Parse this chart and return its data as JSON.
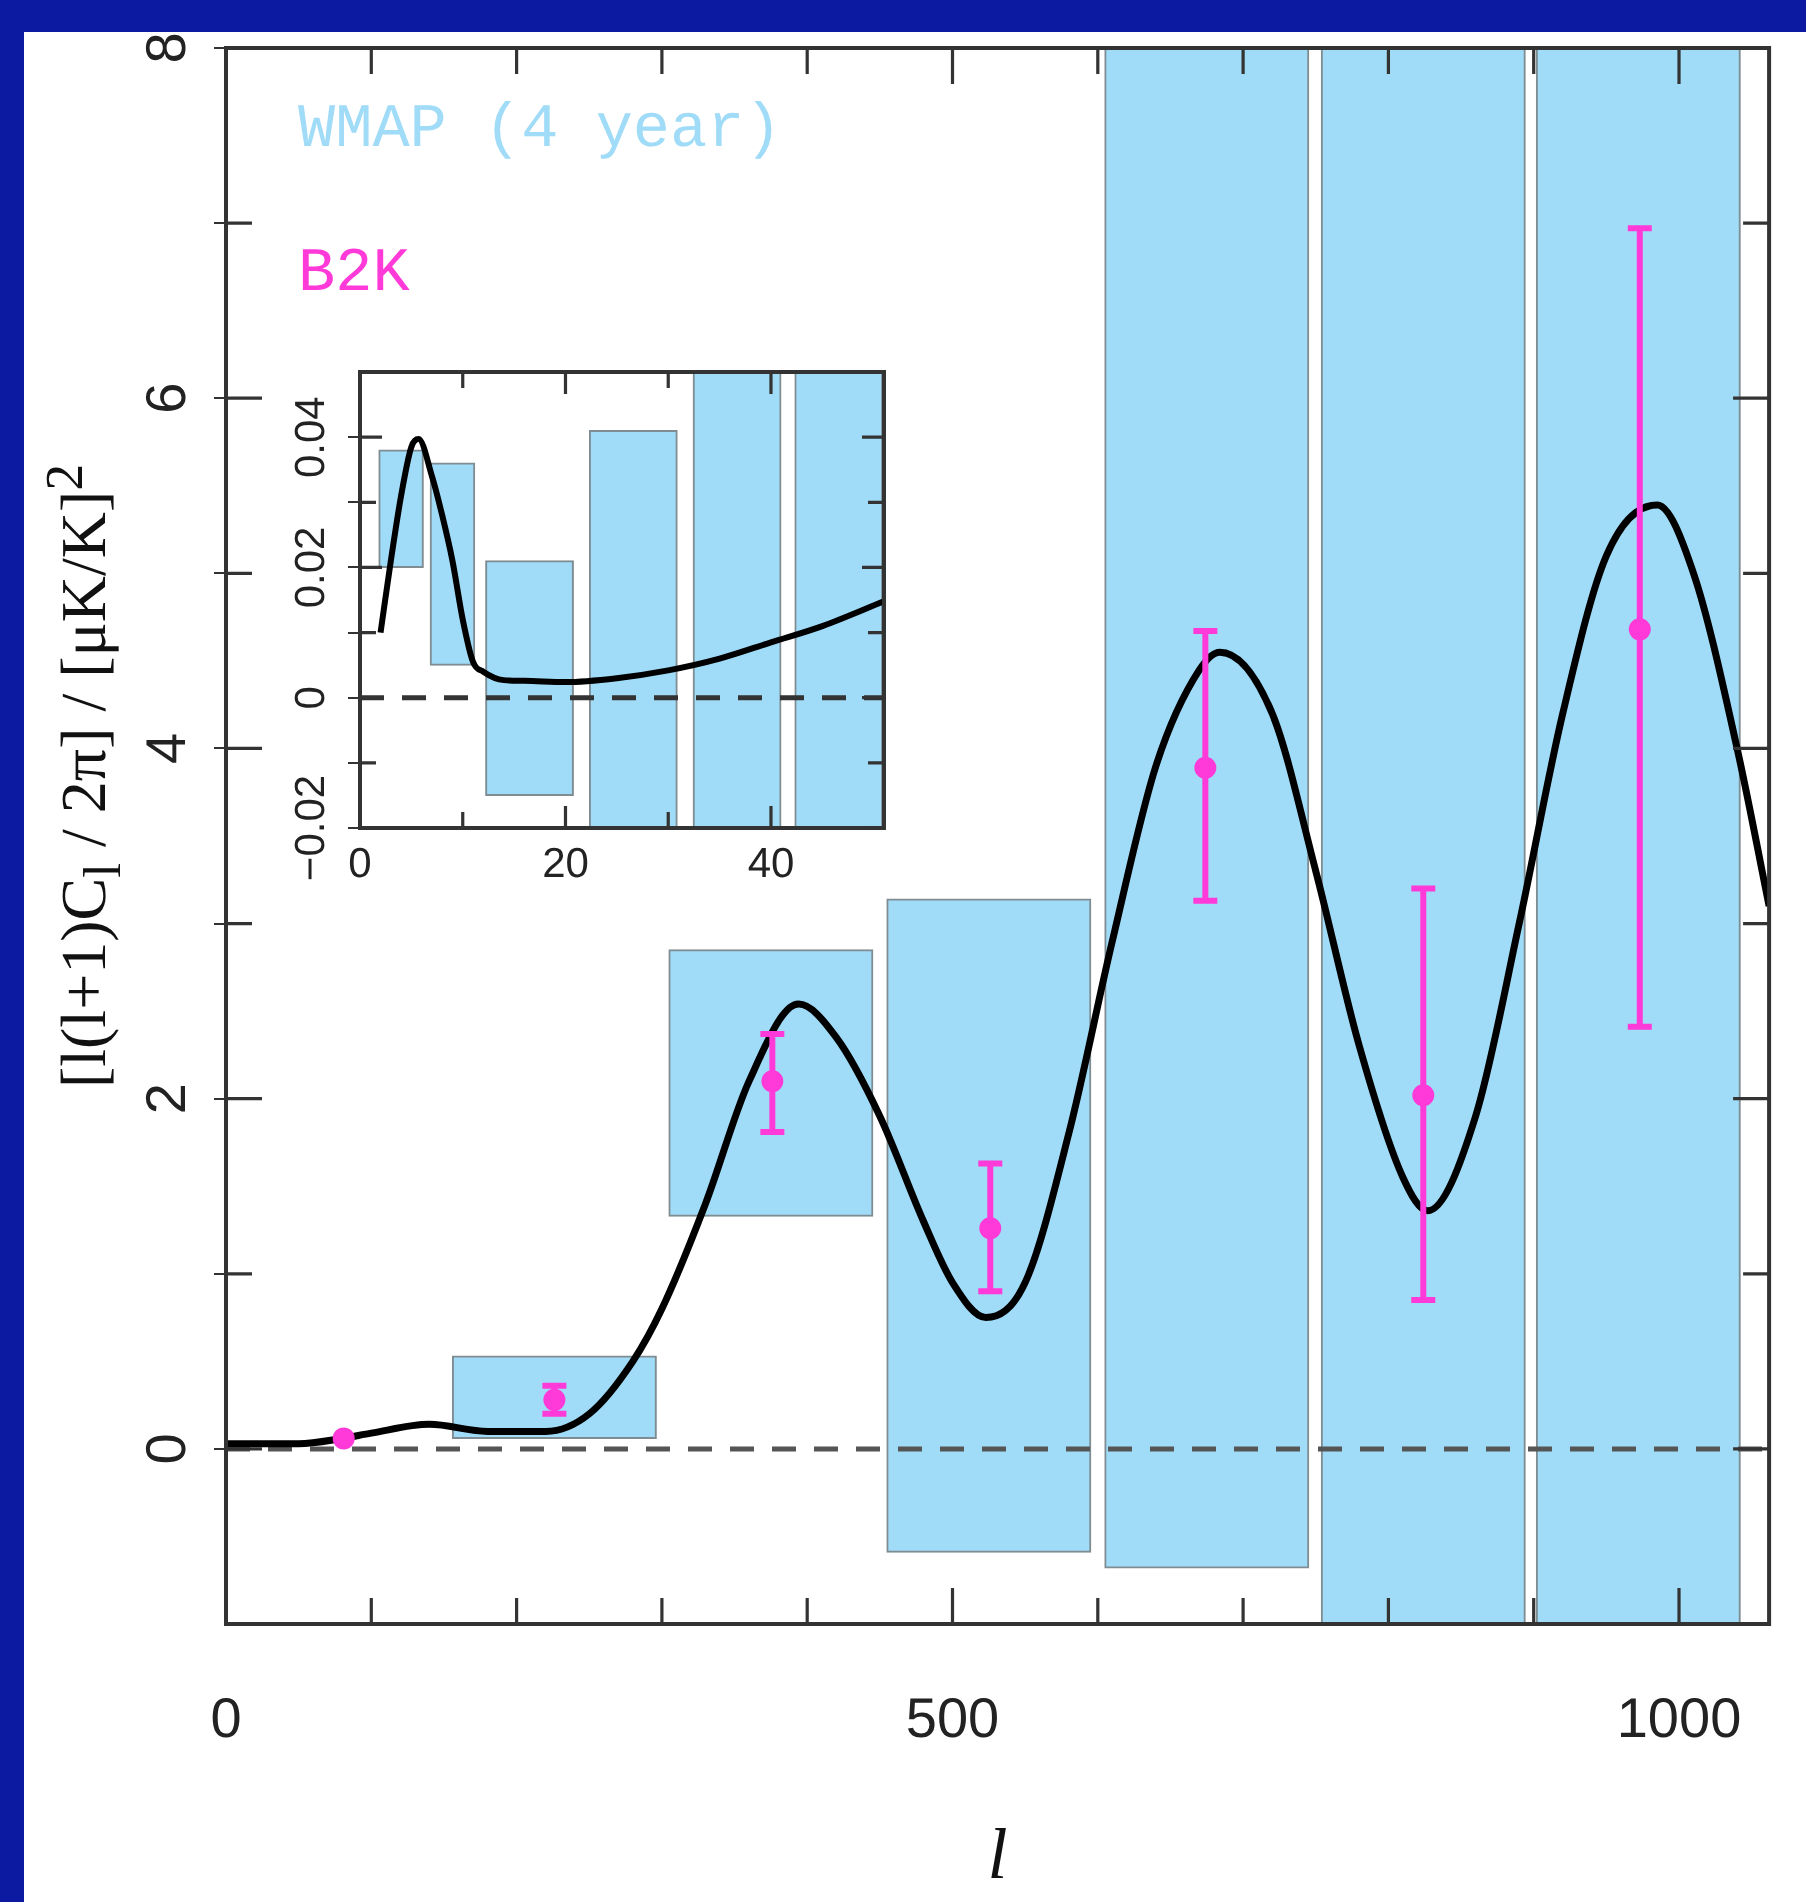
{
  "chart_data": [
    {
      "type": "line",
      "xlabel": "l",
      "ylabel": "[l(l+1)C$_{l}$ / 2π] / [μK/K]$^{2}$",
      "xlim": [
        0,
        1062
      ],
      "ylim": [
        -1,
        8
      ],
      "xticks": [
        0,
        {
          "value": 100,
          "label": null
        },
        {
          "value": 200,
          "label": null
        },
        {
          "value": 300,
          "label": null
        },
        {
          "value": 400,
          "label": null
        },
        500,
        {
          "value": 600,
          "label": null
        },
        {
          "value": 700,
          "label": null
        },
        {
          "value": 800,
          "label": null
        },
        {
          "value": 900,
          "label": null
        },
        1000
      ],
      "yticks": [
        0,
        {
          "value": 1,
          "label": null
        },
        2,
        {
          "value": 3,
          "label": null
        },
        4,
        {
          "value": 5,
          "label": null
        },
        6,
        {
          "value": 7,
          "label": null
        },
        8
      ],
      "legend": "top left",
      "ref_lines": [
        {
          "axis": "y",
          "value": 0,
          "color": "#555555",
          "line_style": "dashed"
        }
      ],
      "series": [
        {
          "name": "WMAP (4 year)",
          "type": "bar",
          "color": "#a0dcf8",
          "x": [
            226,
            375,
            525,
            675,
            824,
            972
          ],
          "base": [
            0.06,
            1.33,
            -0.59,
            -0.68,
            -1,
            -1
          ],
          "values": [
            0.47,
            1.52,
            3.73,
            8.68,
            9,
            9
          ]
        },
        {
          "color": "#000000",
          "x": [
            0,
            50,
            80,
            100,
            140,
            180,
            220,
            250,
            280,
            300,
            330,
            360,
            394,
            420,
            450,
            480,
            500,
            523,
            550,
            580,
            610,
            640,
            670,
            684,
            720,
            750,
            780,
            810,
            827,
            860,
            890,
            920,
            950,
            985,
            1010,
            1040,
            1062
          ],
          "values": [
            0.03,
            0.03,
            0.06,
            0.09,
            0.14,
            0.1,
            0.1,
            0.2,
            0.5,
            0.8,
            1.4,
            2.1,
            2.54,
            2.35,
            1.9,
            1.3,
            0.95,
            0.75,
            0.95,
            1.8,
            2.9,
            3.9,
            4.45,
            4.55,
            4.2,
            3.3,
            2.3,
            1.55,
            1.36,
            1.9,
            3.0,
            4.2,
            5.1,
            5.39,
            5.0,
            4.0,
            3.1
          ]
        },
        {
          "name": "B2K",
          "type": "scatter",
          "color": "#ff3ad8",
          "marker": "circle",
          "x": [
            81,
            226,
            376,
            526,
            674,
            824,
            973
          ],
          "values": [
            0.06,
            0.28,
            2.1,
            1.26,
            3.89,
            2.02,
            4.68
          ],
          "errors": [
            null,
            [
              0.2,
              0.36
            ],
            [
              1.81,
              2.37
            ],
            [
              0.9,
              1.63
            ],
            [
              3.13,
              4.67
            ],
            [
              0.85,
              3.2
            ],
            [
              2.41,
              6.97
            ]
          ]
        }
      ]
    },
    {
      "type": "line",
      "xlim": [
        0,
        51
      ],
      "ylim": [
        -0.02,
        0.05
      ],
      "xticks": [
        0,
        {
          "value": 10,
          "label": null
        },
        20,
        {
          "value": 30,
          "label": null
        },
        40
      ],
      "yticks": [
        {
          "value": -0.02,
          "label": "−0.02"
        },
        {
          "value": -0.01,
          "label": null
        },
        0,
        {
          "value": 0.01,
          "label": null
        },
        0.02,
        {
          "value": 0.03,
          "label": null
        },
        0.04
      ],
      "ref_lines": [
        {
          "axis": "y",
          "value": 0,
          "color": "#333333",
          "line_style": "dashed"
        }
      ],
      "series": [
        {
          "type": "bar",
          "color": "#a0dcf8",
          "x": [
            4,
            9
          ],
          "base": [
            0.02,
            0.005
          ],
          "values": [
            0.018,
            0.031
          ]
        },
        {
          "type": "bar",
          "color": "#a0dcf8",
          "x": [
            16.5,
            26.6,
            36.7,
            46.6
          ],
          "base": [
            -0.015,
            -0.02,
            -0.02,
            -0.02
          ],
          "values": [
            0.036,
            0.061,
            0.07,
            0.07
          ]
        },
        {
          "color": "#000000",
          "x": [
            2,
            3,
            4,
            5,
            5.7,
            7,
            8,
            9,
            10,
            11,
            12,
            14,
            16,
            20,
            25,
            30,
            35,
            40,
            45,
            51
          ],
          "values": [
            0.01,
            0.021,
            0.031,
            0.0385,
            0.0397,
            0.034,
            0.028,
            0.021,
            0.012,
            0.0055,
            0.004,
            0.0027,
            0.0026,
            0.0024,
            0.003,
            0.0042,
            0.006,
            0.0085,
            0.011,
            0.0148
          ]
        }
      ]
    }
  ]
}
